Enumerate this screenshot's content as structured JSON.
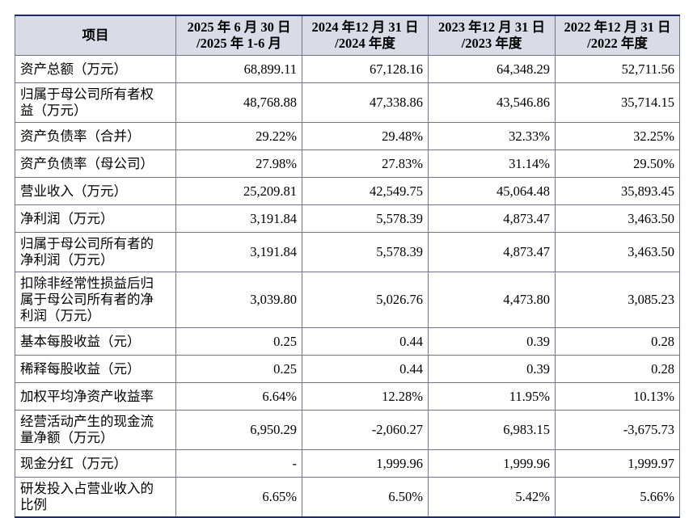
{
  "table": {
    "header": [
      [
        "项目"
      ],
      [
        "2025 年 6 月 30 日",
        "/2025 年 1-6 月"
      ],
      [
        "2024 年12 月 31 日",
        "/2024 年度"
      ],
      [
        "2023 年12 月 31 日",
        "/2023 年度"
      ],
      [
        "2022 年12 月 31 日",
        "/2022 年度"
      ]
    ],
    "rows": [
      [
        "资产总额（万元）",
        "68,899.11",
        "67,128.16",
        "64,348.29",
        "52,711.56"
      ],
      [
        "归属于母公司所有者权益（万元）",
        "48,768.88",
        "47,338.86",
        "43,546.86",
        "35,714.15"
      ],
      [
        "资产负债率（合并）",
        "29.22%",
        "29.48%",
        "32.33%",
        "32.25%"
      ],
      [
        "资产负债率（母公司）",
        "27.98%",
        "27.83%",
        "31.14%",
        "29.50%"
      ],
      [
        "营业收入（万元）",
        "25,209.81",
        "42,549.75",
        "45,064.48",
        "35,893.45"
      ],
      [
        "净利润（万元）",
        "3,191.84",
        "5,578.39",
        "4,873.47",
        "3,463.50"
      ],
      [
        "归属于母公司所有者的净利润（万元）",
        "3,191.84",
        "5,578.39",
        "4,873.47",
        "3,463.50"
      ],
      [
        "扣除非经常性损益后归属于母公司所有者的净利润（万元）",
        "3,039.80",
        "5,026.76",
        "4,473.80",
        "3,085.23"
      ],
      [
        "基本每股收益（元）",
        "0.25",
        "0.44",
        "0.39",
        "0.28"
      ],
      [
        "稀释每股收益（元）",
        "0.25",
        "0.44",
        "0.39",
        "0.28"
      ],
      [
        "加权平均净资产收益率",
        "6.64%",
        "12.28%",
        "11.95%",
        "10.13%"
      ],
      [
        "经营活动产生的现金流量净额（万元）",
        "6,950.29",
        "-2,060.27",
        "6,983.15",
        "-3,675.73"
      ],
      [
        "现金分红（万元）",
        "-",
        "1,999.96",
        "1,999.96",
        "1,999.97"
      ],
      [
        "研发投入占营业收入的比例",
        "6.65%",
        "6.50%",
        "5.42%",
        "5.66%"
      ]
    ]
  }
}
